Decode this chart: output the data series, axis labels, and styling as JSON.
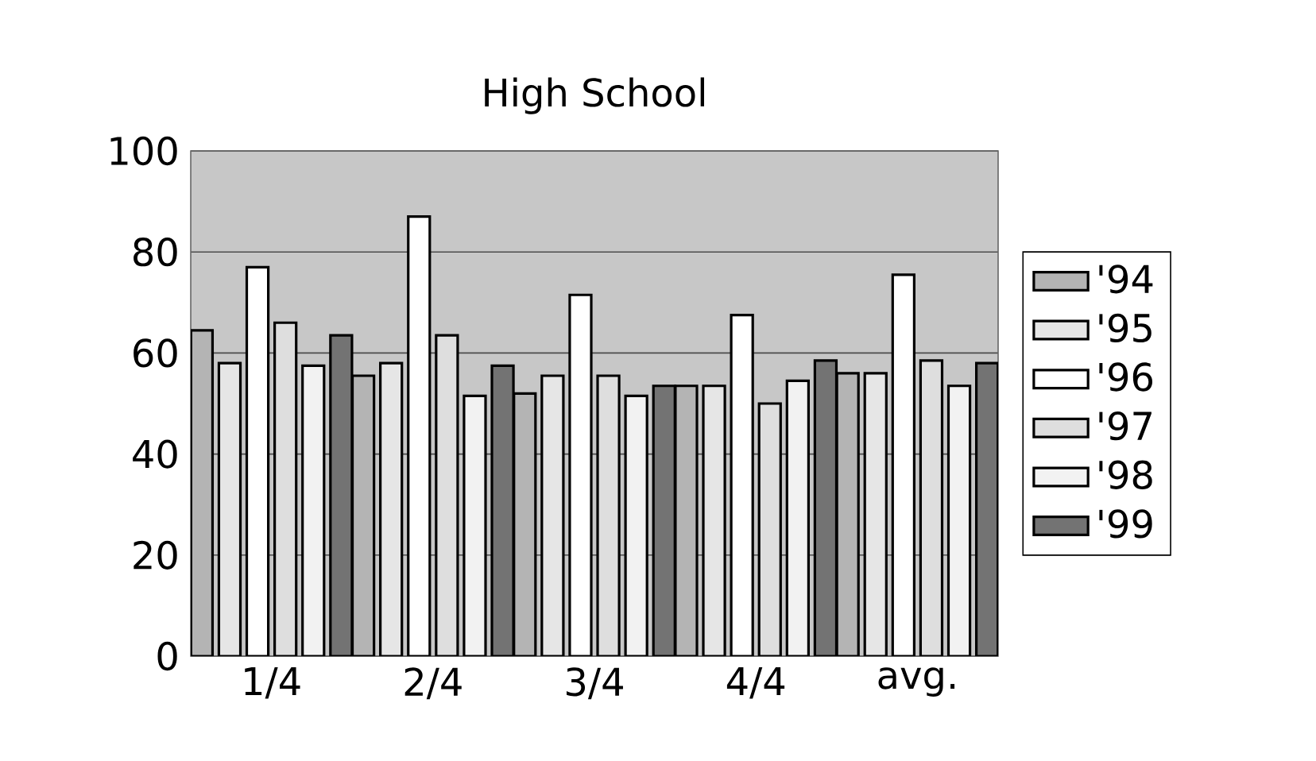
{
  "chart_data": {
    "type": "bar",
    "title": "High School",
    "categories": [
      "1/4",
      "2/4",
      "3/4",
      "4/4",
      "avg."
    ],
    "series": [
      {
        "name": "'94",
        "color": "#b4b4b4",
        "values": [
          64.5,
          55.5,
          52,
          53.5,
          56
        ]
      },
      {
        "name": "'95",
        "color": "#e6e6e6",
        "values": [
          58,
          58,
          55.5,
          53.5,
          56
        ]
      },
      {
        "name": "'96",
        "color": "#ffffff",
        "values": [
          77,
          87,
          71.5,
          67.5,
          75.5
        ]
      },
      {
        "name": "'97",
        "color": "#dedede",
        "values": [
          66,
          63.5,
          55.5,
          50,
          58.5
        ]
      },
      {
        "name": "'98",
        "color": "#f2f2f2",
        "values": [
          57.5,
          51.5,
          51.5,
          54.5,
          53.5
        ]
      },
      {
        "name": "'99",
        "color": "#737373",
        "values": [
          63.5,
          57.5,
          53.5,
          58.5,
          58
        ]
      }
    ],
    "ylim": [
      0,
      100
    ],
    "yticks": [
      0,
      20,
      40,
      60,
      80,
      100
    ],
    "grid": "y",
    "legend": "right"
  }
}
